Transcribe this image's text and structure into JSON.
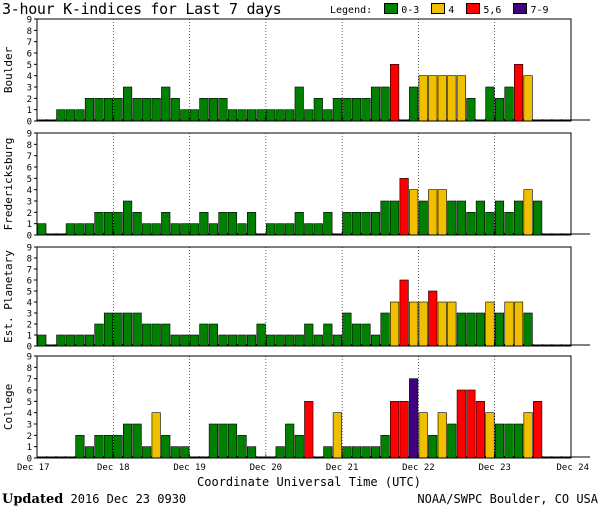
{
  "title": "3-hour K-indices for Last 7 days",
  "legend": {
    "label": "Legend:",
    "items": [
      {
        "label": "0-3",
        "color": "#008000"
      },
      {
        "label": "4",
        "color": "#f0c000"
      },
      {
        "label": "5,6",
        "color": "#ff0000"
      },
      {
        "label": "7-9",
        "color": "#400080"
      }
    ]
  },
  "footer": {
    "updated_label": "Updated",
    "updated_value": "2016 Dec 23 0930",
    "source": "NOAA/SWPC Boulder, CO USA"
  },
  "chart_data": {
    "type": "bar",
    "xlabel": "Coordinate Universal Time (UTC)",
    "x_tick_labels": [
      "Dec 17",
      "Dec 18",
      "Dec 19",
      "Dec 20",
      "Dec 21",
      "Dec 22",
      "Dec 23",
      "Dec 24"
    ],
    "ylim": [
      0,
      9
    ],
    "y_ticks": [
      0,
      1,
      2,
      3,
      4,
      5,
      6,
      7,
      8,
      9
    ],
    "bins_per_day": 8,
    "color_rule": {
      "0-3": "#008000",
      "4": "#f0c000",
      "5-6": "#ff0000",
      "7-9": "#400080"
    },
    "series": [
      {
        "name": "Boulder",
        "values": [
          0,
          0,
          1,
          1,
          1,
          2,
          2,
          2,
          2,
          3,
          2,
          2,
          2,
          3,
          2,
          1,
          1,
          2,
          2,
          2,
          1,
          1,
          1,
          1,
          1,
          1,
          1,
          3,
          1,
          2,
          1,
          2,
          2,
          2,
          2,
          3,
          3,
          5,
          0,
          3,
          4,
          4,
          4,
          4,
          4,
          2,
          0,
          3,
          2,
          3,
          5,
          4,
          0,
          0,
          0,
          0,
          0,
          0
        ]
      },
      {
        "name": "Fredericksburg",
        "values": [
          1,
          0,
          0,
          1,
          1,
          1,
          2,
          2,
          2,
          3,
          2,
          1,
          1,
          2,
          1,
          1,
          1,
          2,
          1,
          2,
          2,
          1,
          2,
          0,
          1,
          1,
          1,
          2,
          1,
          1,
          2,
          0,
          2,
          2,
          2,
          2,
          3,
          3,
          5,
          4,
          3,
          4,
          4,
          3,
          3,
          2,
          3,
          2,
          3,
          2,
          3,
          4,
          3,
          0,
          0,
          0,
          0,
          0
        ]
      },
      {
        "name": "Est. Planetary",
        "values": [
          1,
          0,
          1,
          1,
          1,
          1,
          2,
          3,
          3,
          3,
          3,
          2,
          2,
          2,
          1,
          1,
          1,
          2,
          2,
          1,
          1,
          1,
          1,
          2,
          1,
          1,
          1,
          1,
          2,
          1,
          2,
          1,
          3,
          2,
          2,
          1,
          3,
          4,
          6,
          4,
          4,
          5,
          4,
          4,
          3,
          3,
          3,
          4,
          3,
          4,
          4,
          3,
          0,
          0,
          0,
          0,
          0,
          0
        ]
      },
      {
        "name": "College",
        "values": [
          0,
          0,
          0,
          0,
          2,
          1,
          2,
          2,
          2,
          3,
          3,
          1,
          4,
          2,
          1,
          1,
          0,
          0,
          3,
          3,
          3,
          2,
          1,
          0,
          0,
          1,
          3,
          2,
          5,
          0,
          1,
          4,
          1,
          1,
          1,
          1,
          2,
          5,
          5,
          7,
          4,
          2,
          4,
          3,
          6,
          6,
          5,
          4,
          3,
          3,
          3,
          4,
          5,
          0,
          0,
          0,
          0,
          0
        ]
      }
    ]
  }
}
